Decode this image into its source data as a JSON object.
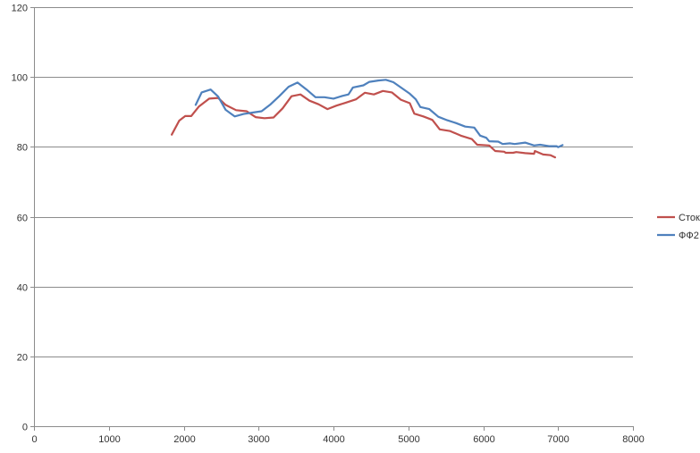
{
  "chart_data": {
    "type": "line",
    "title": "",
    "xlabel": "",
    "ylabel": "",
    "xlim": [
      0,
      8000
    ],
    "ylim": [
      0,
      120
    ],
    "x_ticks": [
      0,
      1000,
      2000,
      3000,
      4000,
      5000,
      6000,
      7000,
      8000
    ],
    "y_ticks": [
      0,
      20,
      40,
      60,
      80,
      100,
      120
    ],
    "grid": "horizontal",
    "legend_position": "right",
    "series": [
      {
        "name": "Сток",
        "color": "#c0504d",
        "points": [
          [
            1840,
            83.5
          ],
          [
            1940,
            87.5
          ],
          [
            2020,
            88.8
          ],
          [
            2100,
            88.8
          ],
          [
            2200,
            91.5
          ],
          [
            2340,
            93.8
          ],
          [
            2460,
            94.0
          ],
          [
            2560,
            92.0
          ],
          [
            2700,
            90.5
          ],
          [
            2840,
            90.2
          ],
          [
            2960,
            88.5
          ],
          [
            3080,
            88.2
          ],
          [
            3200,
            88.4
          ],
          [
            3320,
            91.0
          ],
          [
            3440,
            94.5
          ],
          [
            3560,
            95.0
          ],
          [
            3680,
            93.2
          ],
          [
            3800,
            92.2
          ],
          [
            3920,
            90.8
          ],
          [
            4040,
            91.8
          ],
          [
            4160,
            92.6
          ],
          [
            4300,
            93.6
          ],
          [
            4420,
            95.5
          ],
          [
            4540,
            95.0
          ],
          [
            4660,
            96.0
          ],
          [
            4780,
            95.6
          ],
          [
            4900,
            93.5
          ],
          [
            5020,
            92.5
          ],
          [
            5080,
            89.5
          ],
          [
            5200,
            88.7
          ],
          [
            5320,
            87.7
          ],
          [
            5420,
            85.0
          ],
          [
            5560,
            84.5
          ],
          [
            5700,
            83.2
          ],
          [
            5850,
            82.2
          ],
          [
            5920,
            80.6
          ],
          [
            6080,
            80.4
          ],
          [
            6160,
            78.8
          ],
          [
            6280,
            78.6
          ],
          [
            6300,
            78.3
          ],
          [
            6400,
            78.3
          ],
          [
            6440,
            78.5
          ],
          [
            6560,
            78.2
          ],
          [
            6680,
            78.0
          ],
          [
            6690,
            78.8
          ],
          [
            6800,
            77.8
          ],
          [
            6900,
            77.6
          ],
          [
            6960,
            77.0
          ]
        ]
      },
      {
        "name": "ФФ2",
        "color": "#4f81bd",
        "points": [
          [
            2160,
            92.0
          ],
          [
            2240,
            95.6
          ],
          [
            2360,
            96.4
          ],
          [
            2460,
            94.4
          ],
          [
            2560,
            90.6
          ],
          [
            2680,
            88.7
          ],
          [
            2800,
            89.4
          ],
          [
            2920,
            89.8
          ],
          [
            3040,
            90.2
          ],
          [
            3160,
            92.2
          ],
          [
            3280,
            94.6
          ],
          [
            3400,
            97.2
          ],
          [
            3520,
            98.4
          ],
          [
            3640,
            96.4
          ],
          [
            3760,
            94.2
          ],
          [
            3880,
            94.2
          ],
          [
            4000,
            93.8
          ],
          [
            4120,
            94.6
          ],
          [
            4200,
            95.0
          ],
          [
            4260,
            97.0
          ],
          [
            4400,
            97.6
          ],
          [
            4480,
            98.6
          ],
          [
            4600,
            99.0
          ],
          [
            4700,
            99.2
          ],
          [
            4800,
            98.5
          ],
          [
            4900,
            97.0
          ],
          [
            5020,
            95.2
          ],
          [
            5100,
            93.6
          ],
          [
            5160,
            91.4
          ],
          [
            5280,
            90.8
          ],
          [
            5400,
            88.6
          ],
          [
            5520,
            87.6
          ],
          [
            5640,
            86.8
          ],
          [
            5760,
            85.8
          ],
          [
            5880,
            85.5
          ],
          [
            5960,
            83.2
          ],
          [
            6040,
            82.6
          ],
          [
            6080,
            81.6
          ],
          [
            6200,
            81.5
          ],
          [
            6260,
            80.8
          ],
          [
            6360,
            81.0
          ],
          [
            6420,
            80.8
          ],
          [
            6560,
            81.2
          ],
          [
            6680,
            80.4
          ],
          [
            6760,
            80.6
          ],
          [
            6880,
            80.2
          ],
          [
            6980,
            80.2
          ],
          [
            7000,
            79.9
          ],
          [
            7060,
            80.5
          ]
        ]
      }
    ]
  }
}
